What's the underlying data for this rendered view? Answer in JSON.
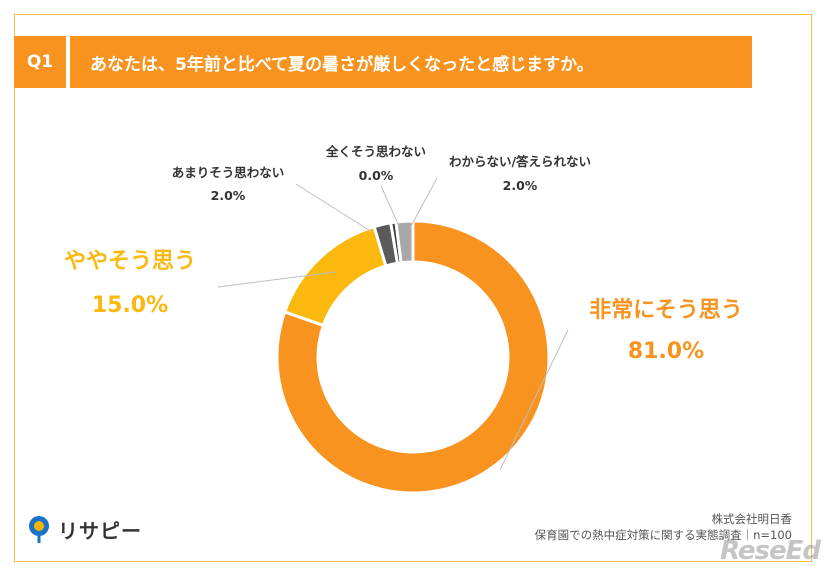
{
  "header": {
    "badge": "Q1",
    "question": "あなたは、5年前と比べて夏の暑さが厳しくなったと感じますか。"
  },
  "chart_data": {
    "type": "pie",
    "variant": "donut",
    "categories": [
      "非常にそう思う",
      "ややそう思う",
      "あまりそう思わない",
      "全くそう思わない",
      "わからない/答えられない"
    ],
    "values": [
      81.0,
      15.0,
      2.0,
      0.0,
      2.0
    ],
    "value_labels": [
      "81.0%",
      "15.0%",
      "2.0%",
      "0.0%",
      "2.0%"
    ],
    "colors": [
      "#f7931e",
      "#fbb80e",
      "#5a5a5a",
      "#3a3a3a",
      "#a8a8a8"
    ],
    "label_colors": [
      "#f7931e",
      "#fbb80e",
      "#333333",
      "#333333",
      "#333333"
    ]
  },
  "footer": {
    "brand": "リサピー",
    "company": "株式会社明日香",
    "survey": "保育園での熱中症対策に関する実態調査｜n=100",
    "watermark": "ReseEd"
  }
}
